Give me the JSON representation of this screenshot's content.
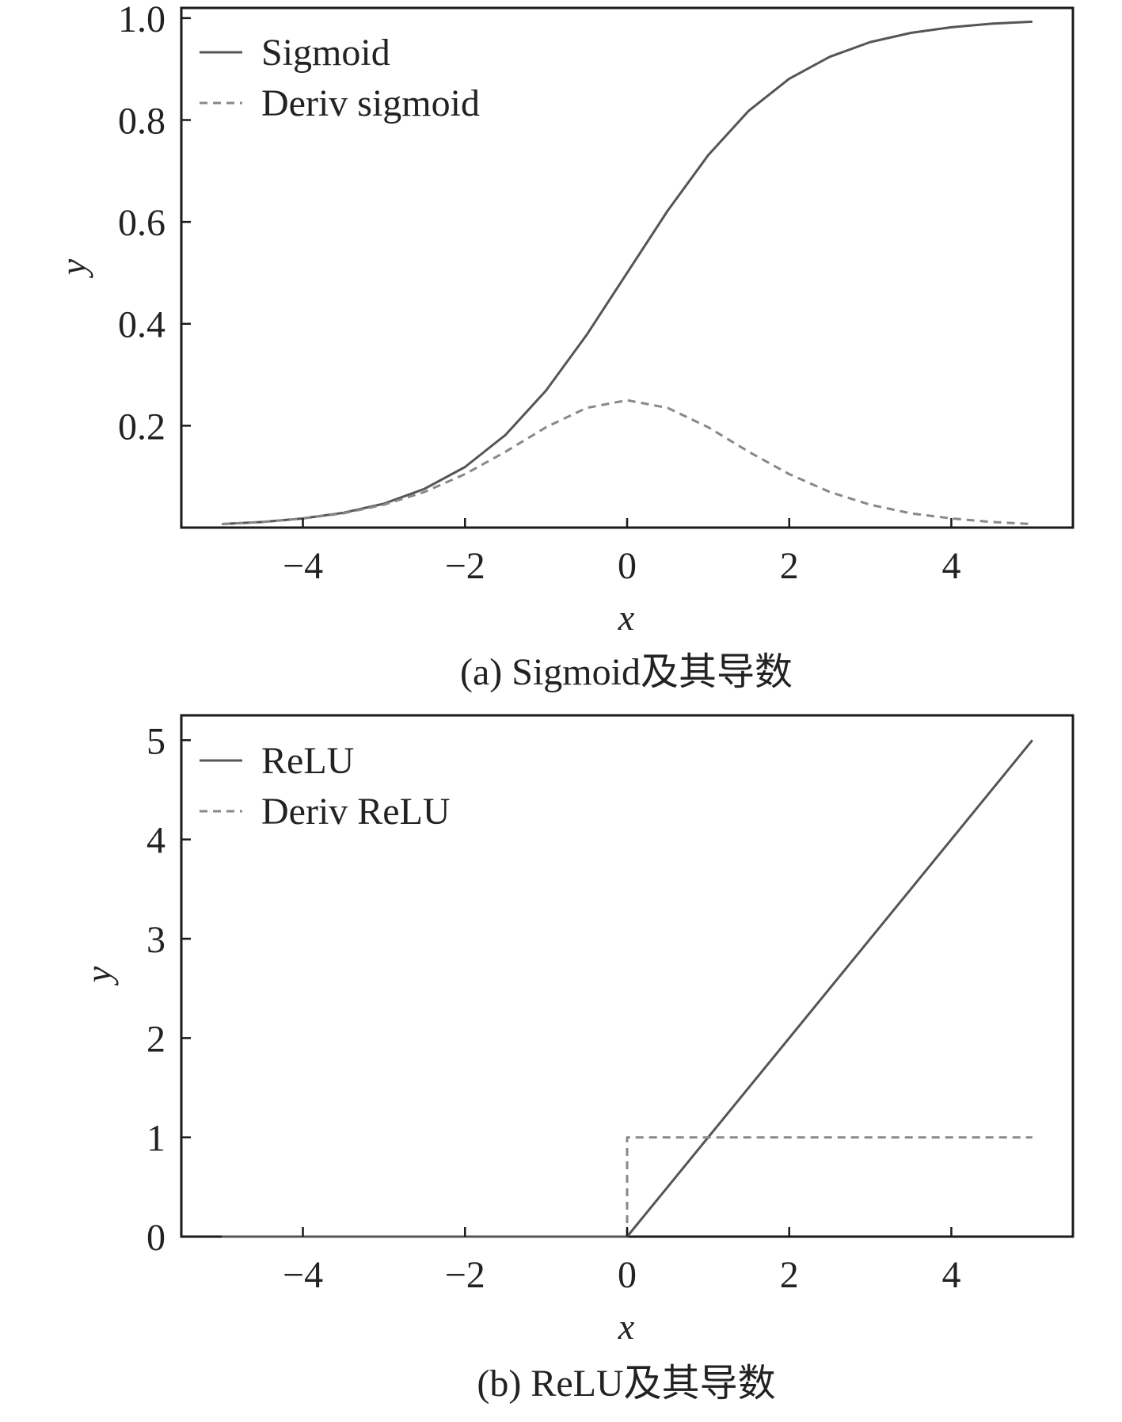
{
  "colors": {
    "frame": "#1a1a1a",
    "function_line": "#555555",
    "derivative_line": "#888888"
  },
  "chart_data": [
    {
      "type": "line",
      "caption": "(a) Sigmoid及其导数",
      "xlabel": "x",
      "ylabel": "y",
      "xlim": [
        -5.5,
        5.5
      ],
      "ylim": [
        0,
        1.02
      ],
      "xticks": [
        -4,
        -2,
        0,
        2,
        4
      ],
      "xtick_labels": [
        "−4",
        "−2",
        "0",
        "2",
        "4"
      ],
      "yticks": [
        0.2,
        0.4,
        0.6,
        0.8,
        1.0
      ],
      "ytick_labels": [
        "0.2",
        "0.4",
        "0.6",
        "0.8",
        "1.0"
      ],
      "grid": false,
      "legend_position": "top-left",
      "x": [
        -5,
        -4.5,
        -4,
        -3.5,
        -3,
        -2.5,
        -2,
        -1.5,
        -1,
        -0.5,
        0,
        0.5,
        1,
        1.5,
        2,
        2.5,
        3,
        3.5,
        4,
        4.5,
        5
      ],
      "series": [
        {
          "name": "Sigmoid",
          "style": "solid",
          "values": [
            0.007,
            0.011,
            0.018,
            0.029,
            0.047,
            0.076,
            0.119,
            0.182,
            0.269,
            0.378,
            0.5,
            0.622,
            0.731,
            0.818,
            0.881,
            0.924,
            0.953,
            0.971,
            0.982,
            0.989,
            0.993
          ]
        },
        {
          "name": "Deriv sigmoid",
          "style": "dashed",
          "values": [
            0.007,
            0.011,
            0.018,
            0.028,
            0.045,
            0.07,
            0.105,
            0.149,
            0.197,
            0.235,
            0.25,
            0.235,
            0.197,
            0.149,
            0.105,
            0.07,
            0.045,
            0.028,
            0.018,
            0.011,
            0.007
          ]
        }
      ]
    },
    {
      "type": "line",
      "caption": "(b) ReLU及其导数",
      "xlabel": "x",
      "ylabel": "y",
      "xlim": [
        -5.5,
        5.5
      ],
      "ylim": [
        0,
        5.25
      ],
      "xticks": [
        -4,
        -2,
        0,
        2,
        4
      ],
      "xtick_labels": [
        "−4",
        "−2",
        "0",
        "2",
        "4"
      ],
      "yticks": [
        0,
        1,
        2,
        3,
        4,
        5
      ],
      "ytick_labels": [
        "0",
        "1",
        "2",
        "3",
        "4",
        "5"
      ],
      "grid": false,
      "legend_position": "top-left",
      "series": [
        {
          "name": "ReLU",
          "style": "solid",
          "x": [
            -5,
            0,
            5
          ],
          "values": [
            0,
            0,
            5
          ]
        },
        {
          "name": "Deriv ReLU",
          "style": "dashed",
          "x": [
            0,
            0,
            5
          ],
          "values": [
            0,
            1,
            1
          ]
        }
      ]
    }
  ]
}
